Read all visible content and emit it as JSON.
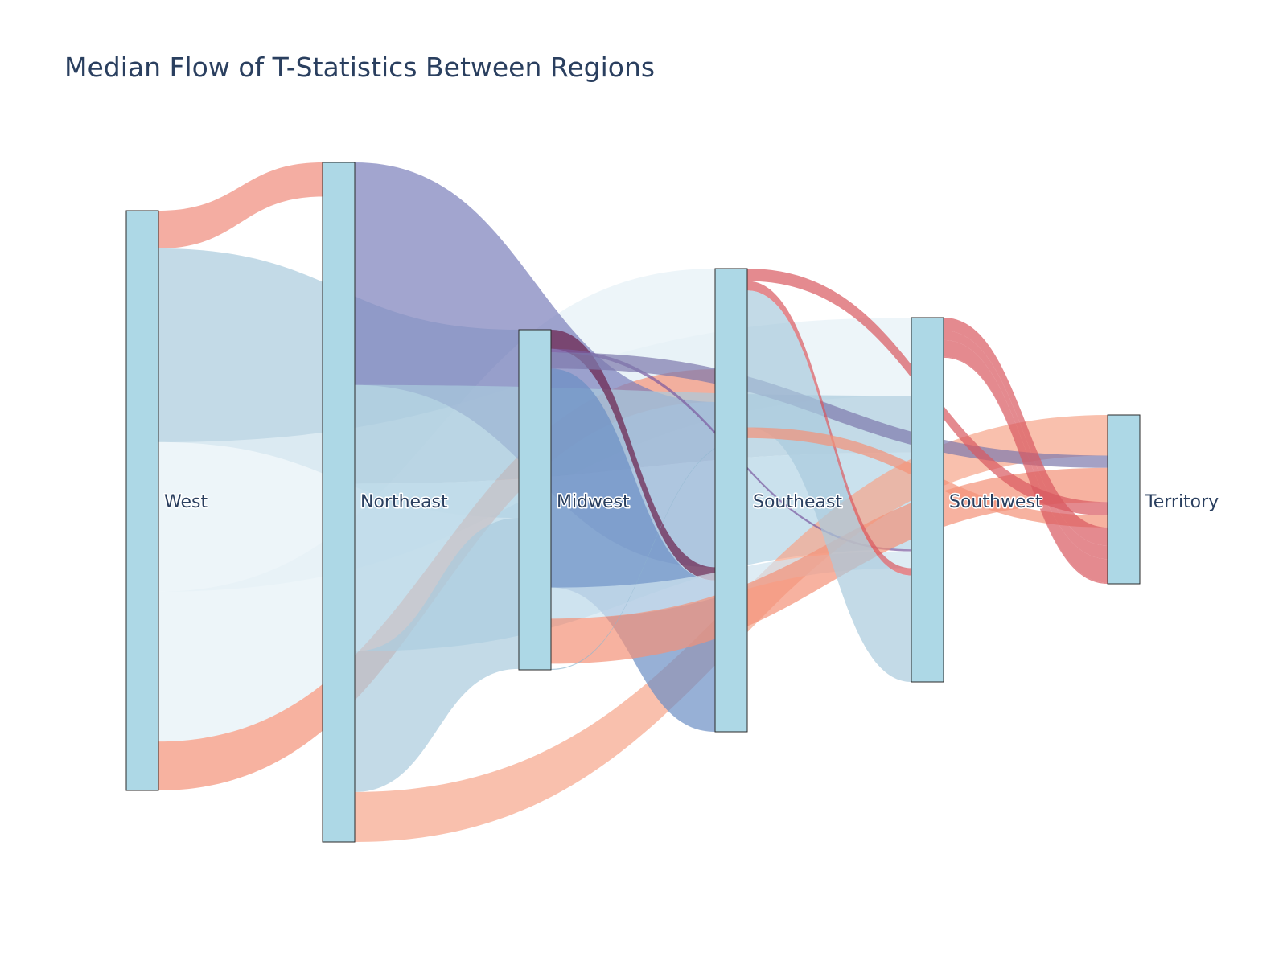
{
  "chart_data": {
    "type": "sankey",
    "title": "Median Flow of T-Statistics Between Regions",
    "nodes": [
      "West",
      "Northeast",
      "Midwest",
      "Southeast",
      "Southwest",
      "Territory"
    ],
    "links": [
      {
        "source": "West",
        "target": "Northeast",
        "value": 2.41,
        "color": "#ef8a7a"
      },
      {
        "source": "West",
        "target": "Midwest",
        "value": 12.35,
        "color": "#a9cbdd"
      },
      {
        "source": "West",
        "target": "Southwest",
        "value": 9.53,
        "color": "#e6f1f7"
      },
      {
        "source": "West",
        "target": "Southeast",
        "value": 9.55,
        "color": "#e6f1f7"
      },
      {
        "source": "West",
        "target": "Southeast",
        "value": 3.12,
        "color": "#f39178"
      },
      {
        "source": "Northeast",
        "target": "Southeast",
        "value": 15.68,
        "color": "#7b7fbb"
      },
      {
        "source": "Northeast",
        "target": "Southwest",
        "value": 6.95,
        "color": "#a9cbdd"
      },
      {
        "source": "Northeast",
        "target": "Southwest",
        "value": 11.81,
        "color": "#b4d4e5"
      },
      {
        "source": "Northeast",
        "target": "Midwest",
        "value": 9.91,
        "color": "#a9cbdd"
      },
      {
        "source": "Northeast",
        "target": "Territory",
        "value": 3.52,
        "color": "#f7a58a"
      },
      {
        "source": "Midwest",
        "target": "Southeast",
        "value": 1.25,
        "color": "#6a1f4a"
      },
      {
        "source": "Midwest",
        "target": "Southwest",
        "value": 0.24,
        "color": "#7a5aa0"
      },
      {
        "source": "Midwest",
        "target": "Territory",
        "value": 1.06,
        "color": "#7d79ad"
      },
      {
        "source": "Midwest",
        "target": "Southeast",
        "value": 14.37,
        "color": "#6b8fc4"
      },
      {
        "source": "Midwest",
        "target": "Southwest",
        "value": 2.04,
        "color": "#d0e4ef"
      },
      {
        "source": "Midwest",
        "target": "Territory",
        "value": 2.96,
        "color": "#f39178"
      },
      {
        "source": "Southeast",
        "target": "Territory",
        "value": 1.18,
        "color": "#d9585f"
      },
      {
        "source": "Southeast",
        "target": "Southwest",
        "value": 0.9,
        "color": "#d9585f"
      },
      {
        "source": "Southeast",
        "target": "Southwest",
        "value": 13.0,
        "color": "#a9cbdd"
      },
      {
        "source": "Southeast",
        "target": "Territory",
        "value": 1.02,
        "color": "#f39178"
      },
      {
        "source": "Southeast",
        "target": "Midwest",
        "value": 0.06,
        "color": "#8fb7cf"
      },
      {
        "source": "Southwest",
        "target": "Territory",
        "value": 1.58,
        "color": "#d9585f"
      },
      {
        "source": "Southwest",
        "target": "Territory",
        "value": 1.16,
        "color": "#d9585f"
      },
      {
        "source": "Southwest",
        "target": "Territory",
        "value": 2.05,
        "color": "#d9585f"
      },
      {
        "source": "Southwest",
        "target": "Territory",
        "value": 0.1,
        "color": "#d9585f"
      }
    ],
    "node_color": "#add8e6"
  }
}
